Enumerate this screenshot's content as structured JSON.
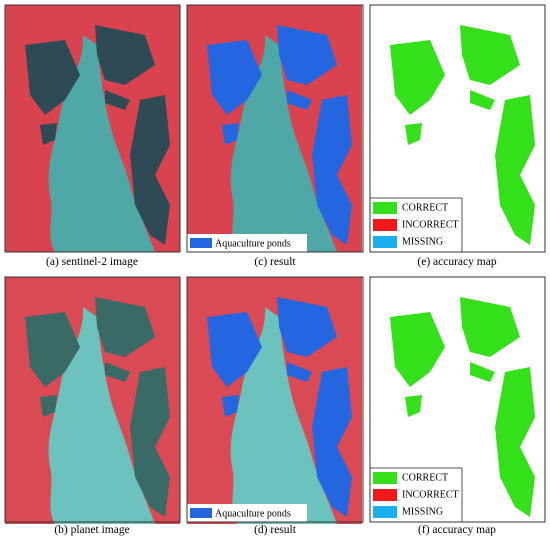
{
  "panels": [
    {
      "caption": "(a) sentinel-2 image"
    },
    {
      "caption": "(c) result",
      "legend": "Aquaculture ponds"
    },
    {
      "caption": "(e) accuracy map",
      "legend": [
        "CORRECT",
        "INCORRECT",
        "MISSING"
      ]
    },
    {
      "caption": "(b) planet image"
    },
    {
      "caption": "(d) result",
      "legend": "Aquaculture ponds"
    },
    {
      "caption": "(f) accuracy map",
      "legend": [
        "CORRECT",
        "INCORRECT",
        "MISSING"
      ]
    }
  ]
}
